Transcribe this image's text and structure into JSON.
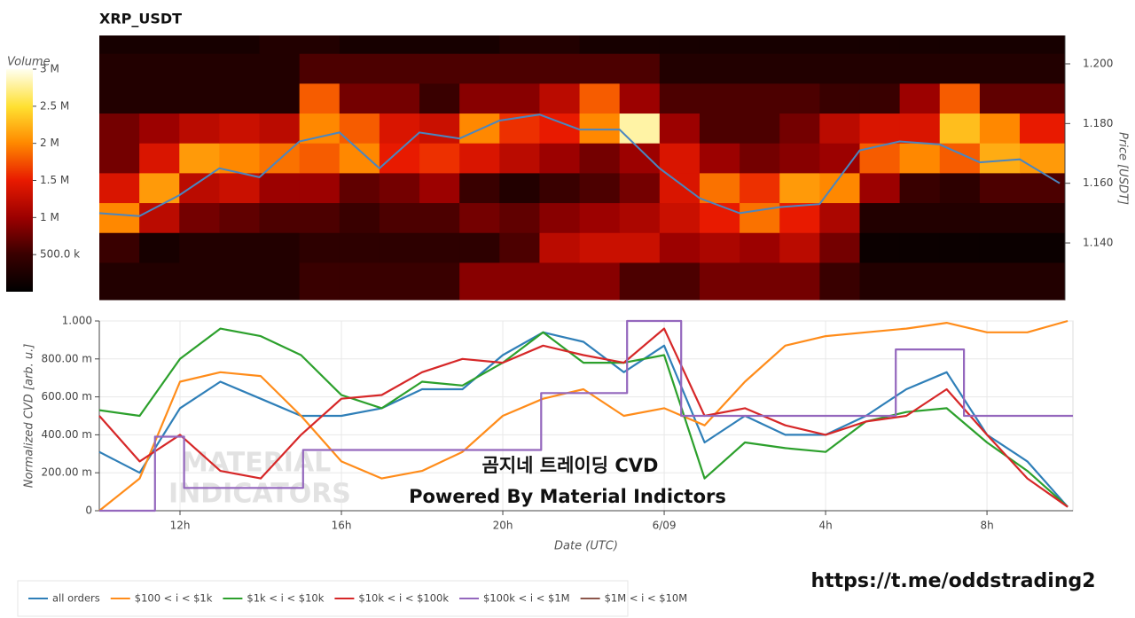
{
  "chart_data": [
    {
      "type": "heatmap",
      "title": "XRP_USDT",
      "colorbar_label": "Volume",
      "ylabel": "Price [USDT]",
      "xlim": [
        10,
        34.13
      ],
      "ylim": [
        1.121,
        1.2095
      ],
      "x_bins": [
        10,
        11,
        12,
        13,
        14,
        15,
        16,
        17,
        18,
        19,
        20,
        21,
        22,
        23,
        24,
        25,
        26,
        27,
        28,
        29,
        30,
        31,
        32,
        33,
        34.13
      ],
      "y_bins": [
        1.121,
        1.1335,
        1.1435,
        1.1535,
        1.1635,
        1.1735,
        1.1835,
        1.1935,
        1.2035,
        1.2095
      ],
      "z": [
        [
          300000,
          300000,
          300000,
          300000,
          300000,
          500000,
          500000,
          500000,
          500000,
          900000,
          900000,
          900000,
          900000,
          600000,
          600000,
          800000,
          800000,
          800000,
          500000,
          300000,
          300000,
          300000,
          300000,
          300000
        ],
        [
          500000,
          200000,
          300000,
          300000,
          300000,
          400000,
          400000,
          400000,
          400000,
          400000,
          600000,
          1200000,
          1300000,
          1300000,
          1000000,
          1100000,
          1000000,
          1200000,
          800000,
          100000,
          100000,
          100000,
          100000,
          100000
        ],
        [
          2000000,
          1200000,
          800000,
          700000,
          600000,
          600000,
          500000,
          600000,
          600000,
          800000,
          700000,
          900000,
          1000000,
          1100000,
          1300000,
          1500000,
          1900000,
          1500000,
          1100000,
          300000,
          300000,
          300000,
          300000,
          300000
        ],
        [
          1400000,
          2100000,
          1200000,
          1300000,
          1000000,
          1000000,
          700000,
          800000,
          1000000,
          500000,
          300000,
          500000,
          600000,
          800000,
          1400000,
          1900000,
          1600000,
          2100000,
          2000000,
          1000000,
          500000,
          400000,
          600000,
          600000
        ],
        [
          800000,
          1400000,
          2100000,
          2000000,
          1900000,
          1800000,
          2000000,
          1500000,
          1600000,
          1400000,
          1200000,
          1000000,
          800000,
          1000000,
          1400000,
          1000000,
          800000,
          900000,
          1000000,
          1800000,
          2000000,
          1800000,
          2200000,
          2100000
        ],
        [
          800000,
          1000000,
          1200000,
          1300000,
          1200000,
          2000000,
          1800000,
          1400000,
          1300000,
          2000000,
          1600000,
          1500000,
          2000000,
          2800000,
          1000000,
          600000,
          600000,
          800000,
          1200000,
          1400000,
          1400000,
          2300000,
          2000000,
          1500000
        ],
        [
          300000,
          300000,
          300000,
          300000,
          300000,
          1800000,
          800000,
          800000,
          500000,
          900000,
          900000,
          1200000,
          1800000,
          1000000,
          600000,
          600000,
          600000,
          600000,
          500000,
          500000,
          1000000,
          1800000,
          700000,
          700000
        ],
        [
          300000,
          300000,
          300000,
          300000,
          300000,
          600000,
          600000,
          600000,
          600000,
          600000,
          600000,
          600000,
          600000,
          600000,
          300000,
          300000,
          300000,
          300000,
          300000,
          300000,
          300000,
          300000,
          300000,
          300000
        ],
        [
          200000,
          200000,
          200000,
          200000,
          300000,
          300000,
          200000,
          200000,
          200000,
          200000,
          300000,
          300000,
          200000,
          200000,
          200000,
          200000,
          200000,
          200000,
          200000,
          200000,
          200000,
          200000,
          200000,
          200000
        ]
      ],
      "zlim": [
        0,
        3000000
      ],
      "zticks": [
        {
          "value": 500000,
          "label": "500.0 k"
        },
        {
          "value": 1000000,
          "label": "1 M"
        },
        {
          "value": 1500000,
          "label": "1.5 M"
        },
        {
          "value": 2000000,
          "label": "2 M"
        },
        {
          "value": 2500000,
          "label": "2.5 M"
        },
        {
          "value": 3000000,
          "label": "3 M"
        }
      ],
      "colorscale": [
        [
          0,
          "#000000"
        ],
        [
          0.17,
          "#3a0000"
        ],
        [
          0.33,
          "#9a0000"
        ],
        [
          0.5,
          "#e81a00"
        ],
        [
          0.67,
          "#ff8a00"
        ],
        [
          0.83,
          "#ffe030"
        ],
        [
          1,
          "#fffff0"
        ]
      ],
      "yticks": [
        {
          "value": 1.14,
          "label": "1.140"
        },
        {
          "value": 1.16,
          "label": "1.160"
        },
        {
          "value": 1.18,
          "label": "1.180"
        },
        {
          "value": 1.2,
          "label": "1.200"
        }
      ],
      "price": {
        "color": "#4a86c0",
        "x": [
          10,
          11,
          12,
          13,
          14,
          15,
          16,
          17,
          18,
          19,
          20,
          21,
          22,
          23,
          24,
          25,
          26,
          27,
          28,
          29,
          30,
          31,
          32,
          33,
          34
        ],
        "values": [
          1.15,
          1.149,
          1.156,
          1.165,
          1.162,
          1.174,
          1.177,
          1.165,
          1.177,
          1.175,
          1.181,
          1.183,
          1.178,
          1.178,
          1.165,
          1.155,
          1.15,
          1.152,
          1.153,
          1.171,
          1.174,
          1.173,
          1.167,
          1.168,
          1.16
        ]
      }
    },
    {
      "type": "line",
      "xlabel": "Date (UTC)",
      "ylabel": "Normalized CVD [arb. u.]",
      "grid": true,
      "legend": "bottom-left",
      "xlim": [
        10,
        34.13
      ],
      "ylim": [
        0,
        1
      ],
      "xticks": [
        {
          "value": 12,
          "label": "12h"
        },
        {
          "value": 16,
          "label": "16h"
        },
        {
          "value": 20,
          "label": "20h"
        },
        {
          "value": 24,
          "label": "6/09"
        },
        {
          "value": 28,
          "label": "4h"
        },
        {
          "value": 32,
          "label": "8h"
        }
      ],
      "yticks": [
        0,
        {
          "value": 0.2,
          "label": "200.00 m"
        },
        {
          "value": 0.4,
          "label": "400.00 m"
        },
        {
          "value": 0.6,
          "label": "600.00 m"
        },
        {
          "value": 0.8,
          "label": "800.00 m"
        },
        {
          "value": 1,
          "label": "1.000"
        }
      ],
      "x": [
        10,
        11,
        12,
        13,
        14,
        15,
        16,
        17,
        18,
        19,
        20,
        21,
        22,
        23,
        24,
        25,
        26,
        27,
        28,
        29,
        30,
        31,
        32,
        33,
        34
      ],
      "series": [
        {
          "name": "all orders",
          "color": "#2f7fb8",
          "values": [
            0.31,
            0.2,
            0.54,
            0.68,
            0.59,
            0.5,
            0.5,
            0.54,
            0.64,
            0.64,
            0.82,
            0.94,
            0.89,
            0.73,
            0.87,
            0.36,
            0.5,
            0.4,
            0.4,
            0.5,
            0.64,
            0.73,
            0.4,
            0.26,
            0.02
          ]
        },
        {
          "name": "$100 < i < $1k",
          "color": "#ff8c1a",
          "values": [
            0,
            0.17,
            0.68,
            0.73,
            0.71,
            0.5,
            0.26,
            0.17,
            0.21,
            0.31,
            0.5,
            0.59,
            0.64,
            0.5,
            0.54,
            0.45,
            0.68,
            0.87,
            0.92,
            0.94,
            0.96,
            0.99,
            0.94,
            0.94,
            1.0
          ]
        },
        {
          "name": "$1k < i < $10k",
          "color": "#2ca02c",
          "values": [
            0.53,
            0.5,
            0.8,
            0.96,
            0.92,
            0.82,
            0.61,
            0.54,
            0.68,
            0.66,
            0.78,
            0.94,
            0.78,
            0.78,
            0.82,
            0.17,
            0.36,
            0.33,
            0.31,
            0.47,
            0.52,
            0.54,
            0.36,
            0.21,
            0.02
          ]
        },
        {
          "name": "$10k < i < $100k",
          "color": "#d62728",
          "values": [
            0.5,
            0.26,
            0.4,
            0.21,
            0.17,
            0.4,
            0.59,
            0.61,
            0.73,
            0.8,
            0.78,
            0.87,
            0.82,
            0.78,
            0.96,
            0.5,
            0.54,
            0.45,
            0.4,
            0.47,
            0.5,
            0.64,
            0.4,
            0.17,
            0.02
          ]
        },
        {
          "name": "$100k < i < $1M",
          "color": "#9467bd",
          "step": "after",
          "x": [
            10,
            11.38,
            12.1,
            15.05,
            20.95,
            23.08,
            24.42,
            29.74,
            31.43,
            34.13
          ],
          "values": [
            0,
            0.39,
            0.12,
            0.32,
            0.62,
            1.0,
            0.5,
            0.85,
            0.5,
            0.5
          ]
        },
        {
          "name": "$1M < i < $10M",
          "color": "#8c564b",
          "values": [
            null,
            null,
            null,
            null,
            null,
            null,
            null,
            null,
            null,
            null,
            null,
            null,
            null,
            null,
            null,
            null,
            null,
            null,
            null,
            null,
            null,
            null,
            null,
            null,
            null
          ]
        }
      ]
    }
  ],
  "annotations": {
    "logo_line1": "MATERIAL",
    "logo_line2": "INDICATORS",
    "overlay_title": "곰지네 트레이딩 CVD",
    "powered_by": "Powered By Material Indictors",
    "link": "https://t.me/oddstrading2"
  }
}
